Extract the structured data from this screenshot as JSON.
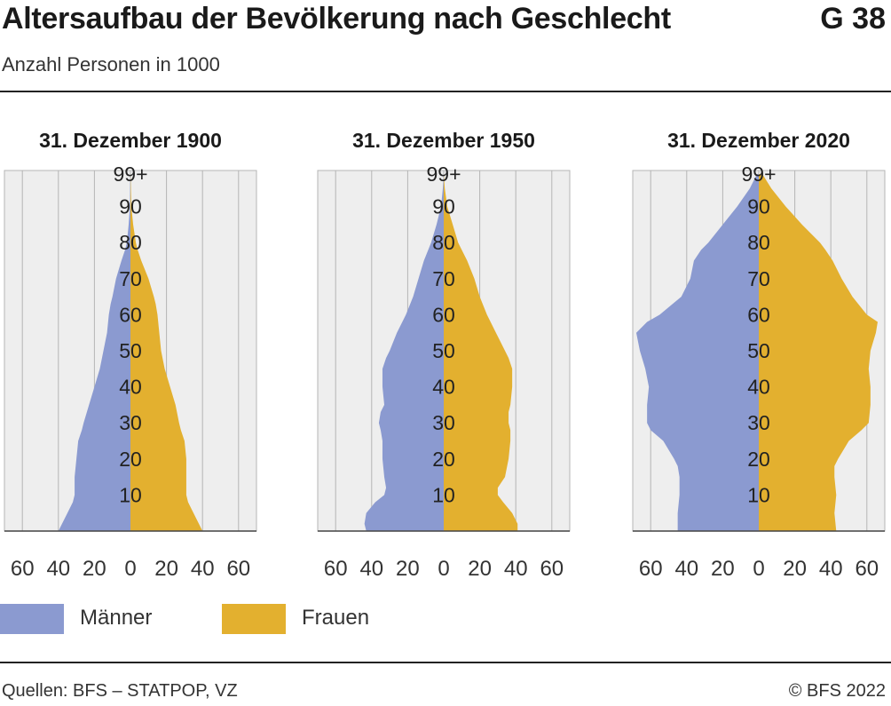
{
  "header": {
    "title": "Altersaufbau der Bevölkerung nach Geschlecht",
    "chart_number": "G 38",
    "subtitle": "Anzahl Personen in 1000"
  },
  "legend": {
    "men_label": "Männer",
    "women_label": "Frauen"
  },
  "footer": {
    "source": "Quellen: BFS – STATPOP, VZ",
    "copyright": "© BFS 2022"
  },
  "colors": {
    "men": "#8b9ad0",
    "women": "#e3b02f",
    "panel_bg": "#eeeeee",
    "grid": "#b5b5b5"
  },
  "chart_data": [
    {
      "type": "area",
      "title": "31. Dezember 1900",
      "x_ticks": [
        "60",
        "40",
        "20",
        "0",
        "20",
        "40",
        "60"
      ],
      "xlim": [
        -70,
        70
      ],
      "y_tick_labels": [
        "10",
        "20",
        "30",
        "40",
        "50",
        "60",
        "70",
        "80",
        "90",
        "99+"
      ],
      "ylim": [
        0,
        100
      ],
      "age": [
        0,
        2,
        5,
        8,
        10,
        15,
        20,
        25,
        28,
        30,
        35,
        40,
        45,
        50,
        55,
        60,
        63,
        65,
        70,
        75,
        78,
        80,
        85,
        90,
        99
      ],
      "series": [
        {
          "name": "Männer",
          "values": [
            40,
            38,
            35,
            32,
            31,
            31,
            30,
            29,
            27,
            26,
            23,
            20,
            17,
            15,
            13,
            12,
            11,
            10,
            8,
            5,
            3,
            2,
            1,
            0.3,
            0
          ]
        },
        {
          "name": "Frauen",
          "values": [
            40,
            38,
            35,
            32,
            31,
            31,
            31,
            30,
            28,
            27,
            25,
            22,
            19,
            17,
            16,
            15,
            14,
            13,
            10,
            6,
            4,
            3,
            1.5,
            0.5,
            0
          ]
        }
      ]
    },
    {
      "type": "area",
      "title": "31. Dezember 1950",
      "x_ticks": [
        "60",
        "40",
        "20",
        "0",
        "20",
        "40",
        "60"
      ],
      "xlim": [
        -70,
        70
      ],
      "y_tick_labels": [
        "10",
        "20",
        "30",
        "40",
        "50",
        "60",
        "70",
        "80",
        "90",
        "99+"
      ],
      "ylim": [
        0,
        100
      ],
      "age": [
        0,
        2,
        5,
        8,
        10,
        12,
        15,
        20,
        25,
        28,
        30,
        33,
        35,
        40,
        45,
        48,
        50,
        55,
        60,
        65,
        70,
        75,
        80,
        85,
        90,
        95,
        99
      ],
      "series": [
        {
          "name": "Männer",
          "values": [
            43,
            44,
            43,
            38,
            33,
            32,
            33,
            34,
            34,
            35,
            36,
            35,
            33,
            34,
            34,
            32,
            30,
            26,
            21,
            17,
            14,
            11,
            7,
            4,
            1.5,
            0.5,
            0
          ]
        },
        {
          "name": "Frauen",
          "values": [
            41,
            41,
            38,
            33,
            30,
            30,
            34,
            36,
            37,
            37,
            36,
            36,
            37,
            38,
            38,
            36,
            34,
            29,
            24,
            20,
            17,
            13,
            8,
            5,
            2,
            0.6,
            0
          ]
        }
      ]
    },
    {
      "type": "area",
      "title": "31. Dezember 2020",
      "x_ticks": [
        "60",
        "40",
        "20",
        "0",
        "20",
        "40",
        "60"
      ],
      "xlim": [
        -70,
        70
      ],
      "y_tick_labels": [
        "10",
        "20",
        "30",
        "40",
        "50",
        "60",
        "70",
        "80",
        "90",
        "99+"
      ],
      "ylim": [
        0,
        100
      ],
      "age": [
        0,
        5,
        10,
        15,
        18,
        20,
        25,
        28,
        30,
        35,
        40,
        45,
        50,
        55,
        58,
        60,
        65,
        70,
        75,
        78,
        80,
        85,
        90,
        95,
        99
      ],
      "series": [
        {
          "name": "Männer",
          "values": [
            45,
            45,
            44,
            44,
            45,
            47,
            53,
            60,
            62,
            62,
            61,
            63,
            66,
            68,
            62,
            55,
            43,
            38,
            36,
            32,
            28,
            20,
            12,
            5,
            1
          ]
        },
        {
          "name": "Frauen",
          "values": [
            43,
            42,
            43,
            42,
            42,
            44,
            50,
            57,
            61,
            62,
            62,
            61,
            62,
            65,
            66,
            60,
            52,
            46,
            41,
            37,
            34,
            24,
            15,
            7,
            2
          ]
        }
      ]
    }
  ]
}
